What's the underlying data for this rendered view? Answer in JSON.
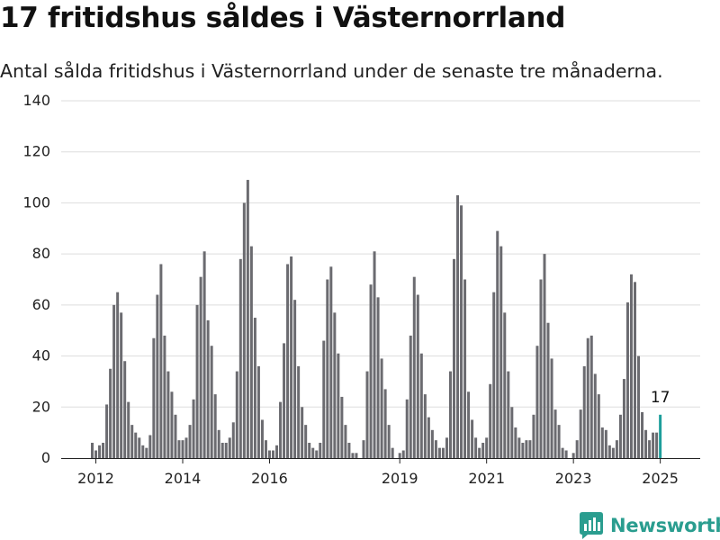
{
  "chart_data": {
    "type": "bar",
    "title": "17 fritidshus såldes i Västernorrland",
    "subtitle": "Antal sålda fritidshus i Västernorrland under de senaste tre månaderna.",
    "xlabel": "",
    "ylabel": "",
    "ylim": [
      0,
      140
    ],
    "yticks": [
      0,
      20,
      40,
      60,
      80,
      100,
      120,
      140
    ],
    "xtick_labels": [
      "2012",
      "2014",
      "2016",
      "2019",
      "2021",
      "2023",
      "2025"
    ],
    "grid": true,
    "x_start_month": "2011-12",
    "values": [
      6,
      3,
      5,
      6,
      21,
      35,
      60,
      65,
      57,
      38,
      22,
      13,
      10,
      8,
      5,
      4,
      9,
      47,
      64,
      76,
      48,
      34,
      26,
      17,
      7,
      7,
      8,
      13,
      23,
      60,
      71,
      81,
      54,
      44,
      25,
      11,
      6,
      6,
      8,
      14,
      34,
      78,
      100,
      109,
      83,
      55,
      36,
      15,
      7,
      3,
      3,
      5,
      22,
      45,
      76,
      79,
      62,
      36,
      20,
      13,
      6,
      4,
      3,
      6,
      46,
      70,
      75,
      57,
      41,
      24,
      13,
      6,
      2,
      2,
      0,
      7,
      34,
      68,
      81,
      63,
      39,
      27,
      13,
      4,
      0,
      2,
      3,
      23,
      48,
      71,
      64,
      41,
      25,
      16,
      11,
      7,
      4,
      4,
      8,
      34,
      78,
      103,
      99,
      70,
      26,
      15,
      8,
      4,
      6,
      8,
      29,
      65,
      89,
      83,
      57,
      34,
      20,
      12,
      8,
      6,
      7,
      7,
      17,
      44,
      70,
      80,
      53,
      39,
      19,
      13,
      4,
      3,
      0,
      2,
      7,
      19,
      36,
      47,
      48,
      33,
      25,
      12,
      11,
      5,
      4,
      7,
      17,
      31,
      61,
      72,
      69,
      40,
      18,
      11,
      7,
      10,
      10,
      17
    ],
    "highlight": {
      "label": "17",
      "value": 17,
      "color": "#1d9e9b"
    },
    "bar_color": "#6b6b70"
  },
  "brand": {
    "name": "Newsworthy",
    "icon": "newsworthy-logo-icon",
    "color": "#2a9d8f"
  }
}
